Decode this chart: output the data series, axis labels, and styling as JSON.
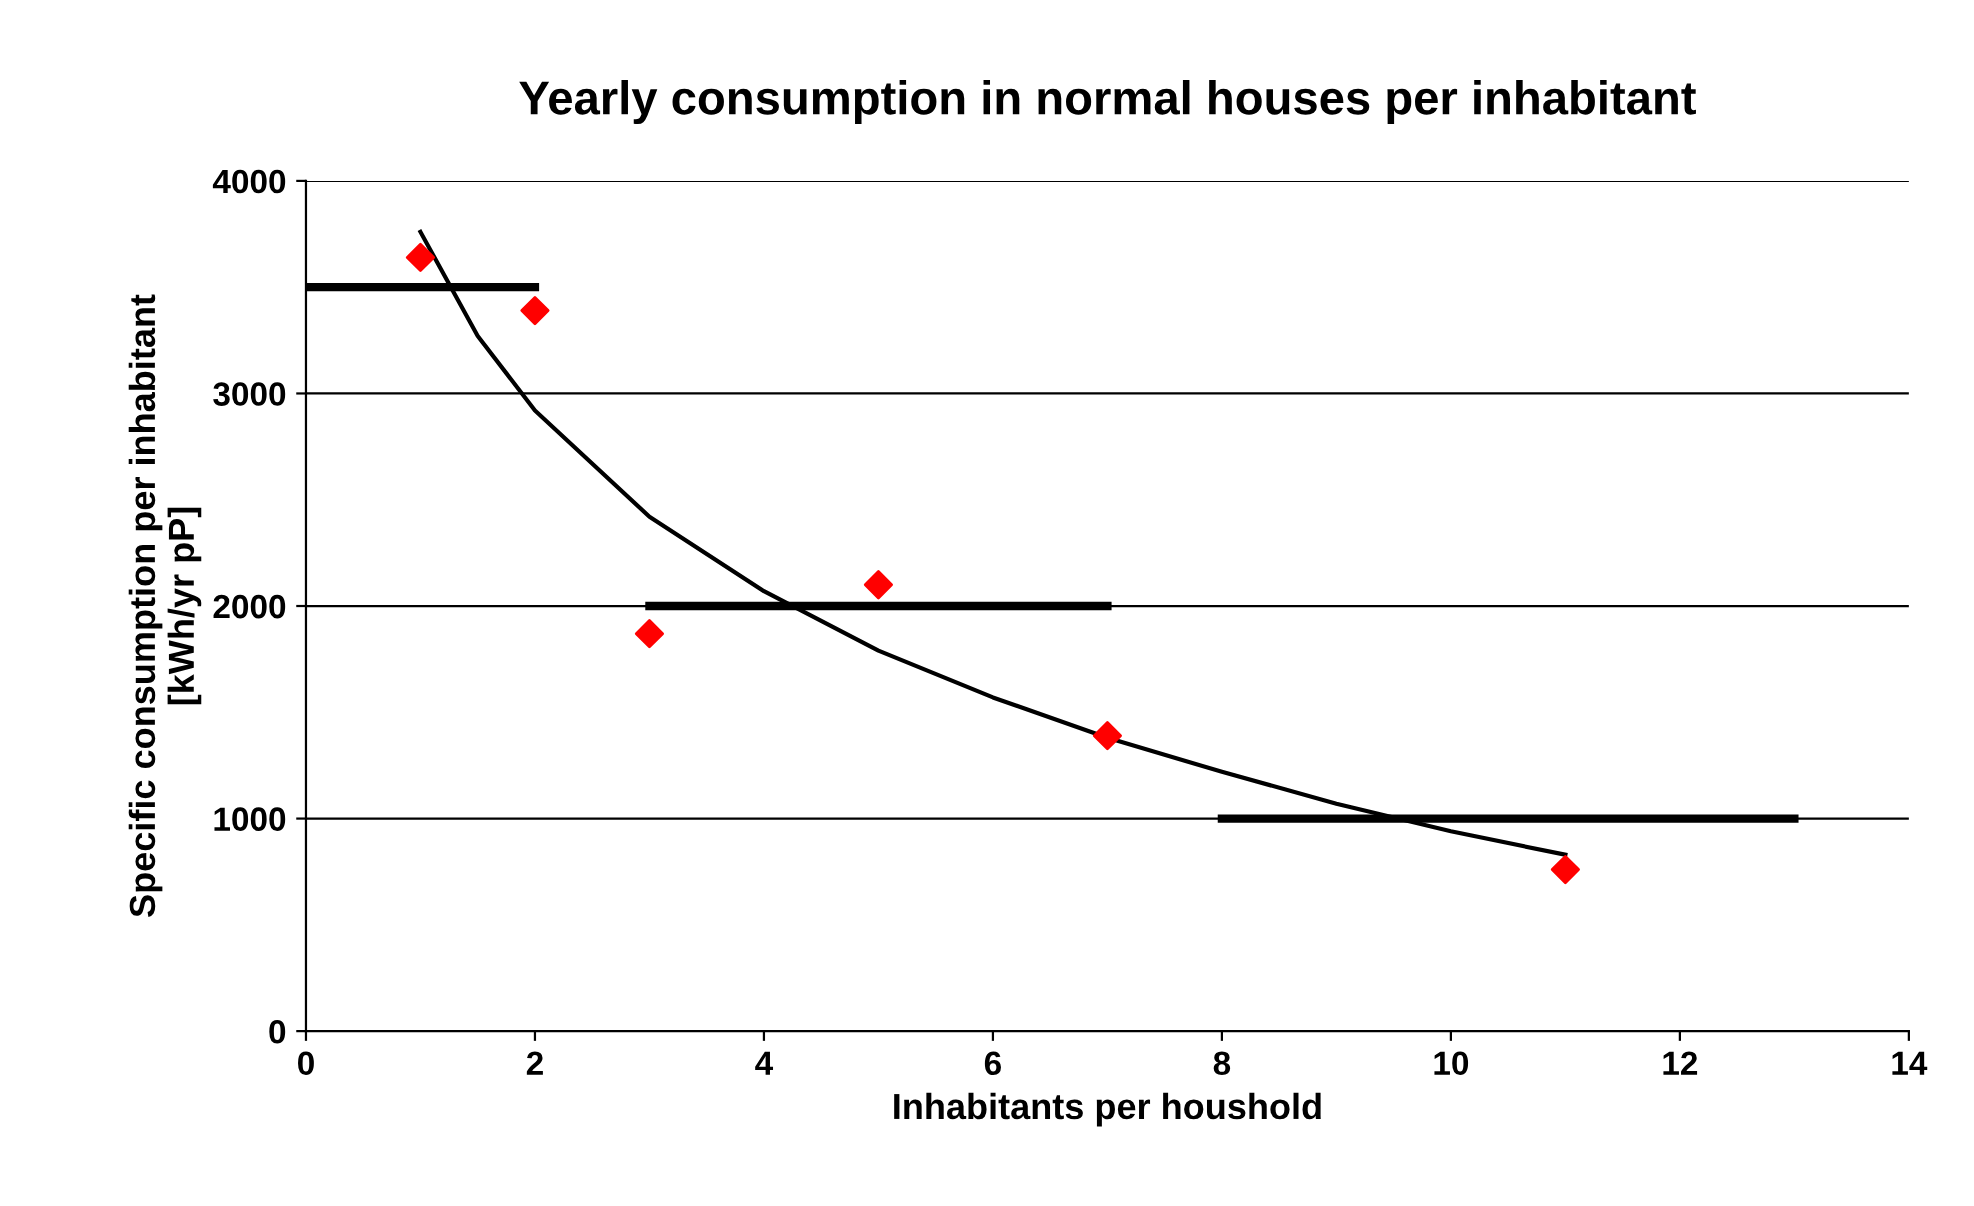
{
  "chart_data": {
    "type": "scatter",
    "title": "Yearly consumption in normal houses per inhabitant",
    "xlabel": "Inhabitants per houshold",
    "ylabel": "Specific consumption per inhabitant\n[kWh/yr pP]",
    "series": [
      {
        "color": "#ff0000",
        "marker": "diamond",
        "x": [
          1,
          2,
          3,
          5,
          7,
          11
        ],
        "values": [
          3640,
          3390,
          1870,
          2100,
          1390,
          760
        ]
      },
      {
        "type": "line",
        "color": "#000000",
        "marker": "none",
        "x": [
          1,
          1.5,
          2,
          3,
          4,
          5,
          6,
          7,
          8,
          9,
          10,
          11
        ],
        "values": [
          3760,
          3270,
          2920,
          2420,
          2070,
          1790,
          1570,
          1380,
          1220,
          1070,
          940,
          830
        ]
      },
      {
        "type": "line",
        "color": "#000000",
        "marker": "none",
        "x": [
          0,
          2
        ],
        "values": [
          3500,
          3500
        ]
      },
      {
        "type": "line",
        "color": "#000000",
        "marker": "none",
        "x": [
          3,
          7
        ],
        "values": [
          2000,
          2000
        ]
      },
      {
        "type": "line",
        "color": "#000000",
        "marker": "none",
        "x": [
          8,
          13
        ],
        "values": [
          1000,
          1000
        ]
      }
    ],
    "xlim": [
      0,
      14
    ],
    "xticks": [
      0,
      2,
      4,
      6,
      8,
      10,
      12,
      14
    ],
    "ylim": [
      0,
      4000
    ],
    "yticks": [
      0,
      1000,
      2000,
      3000,
      4000
    ],
    "grid": "y",
    "legend": false
  }
}
